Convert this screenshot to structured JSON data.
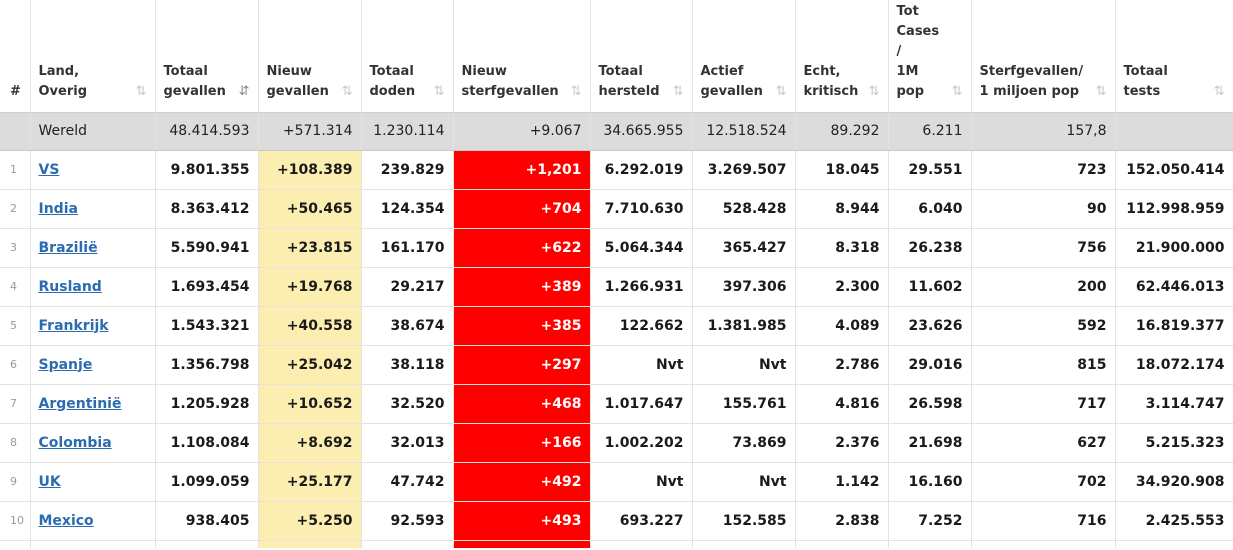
{
  "columns": [
    {
      "label": "#",
      "sort": false
    },
    {
      "label": "Land,\nOverig",
      "sort": true
    },
    {
      "label": "Totaal\ngevallen",
      "sort": true,
      "active": true
    },
    {
      "label": "Nieuw\ngevallen",
      "sort": true
    },
    {
      "label": "Totaal\ndoden",
      "sort": true
    },
    {
      "label": "Nieuw\nsterfgevallen",
      "sort": true
    },
    {
      "label": "Totaal\nhersteld",
      "sort": true
    },
    {
      "label": "Actief\ngevallen",
      "sort": true
    },
    {
      "label": "Echt,\nkritisch",
      "sort": true
    },
    {
      "label": "Tot\nCases\n/\n1M\npop",
      "sort": true
    },
    {
      "label": "Sterfgevallen/\n1 miljoen pop",
      "sort": true
    },
    {
      "label": "Totaal\ntests",
      "sort": true
    }
  ],
  "sort_icon": "⇅",
  "sort_icon_active": "⇵",
  "world": {
    "land": "Wereld",
    "total_cases": "48.414.593",
    "new_cases": "+571.314",
    "total_deaths": "1.230.114",
    "new_deaths": "+9.067",
    "total_recovered": "34.665.955",
    "active_cases": "12.518.524",
    "critical": "89.292",
    "cases_per_1m": "6.211",
    "deaths_per_1m": "157,8",
    "total_tests": ""
  },
  "rows": [
    {
      "num": "1",
      "land": "VS",
      "total_cases": "9.801.355",
      "new_cases": "+108.389",
      "total_deaths": "239.829",
      "new_deaths": "+1,201",
      "total_recovered": "6.292.019",
      "active_cases": "3.269.507",
      "critical": "18.045",
      "cases_per_1m": "29.551",
      "deaths_per_1m": "723",
      "total_tests": "152.050.414"
    },
    {
      "num": "2",
      "land": "India",
      "total_cases": "8.363.412",
      "new_cases": "+50.465",
      "total_deaths": "124.354",
      "new_deaths": "+704",
      "total_recovered": "7.710.630",
      "active_cases": "528.428",
      "critical": "8.944",
      "cases_per_1m": "6.040",
      "deaths_per_1m": "90",
      "total_tests": "112.998.959"
    },
    {
      "num": "3",
      "land": "Brazilië",
      "total_cases": "5.590.941",
      "new_cases": "+23.815",
      "total_deaths": "161.170",
      "new_deaths": "+622",
      "total_recovered": "5.064.344",
      "active_cases": "365.427",
      "critical": "8.318",
      "cases_per_1m": "26.238",
      "deaths_per_1m": "756",
      "total_tests": "21.900.000"
    },
    {
      "num": "4",
      "land": "Rusland",
      "total_cases": "1.693.454",
      "new_cases": "+19.768",
      "total_deaths": "29.217",
      "new_deaths": "+389",
      "total_recovered": "1.266.931",
      "active_cases": "397.306",
      "critical": "2.300",
      "cases_per_1m": "11.602",
      "deaths_per_1m": "200",
      "total_tests": "62.446.013"
    },
    {
      "num": "5",
      "land": "Frankrijk",
      "total_cases": "1.543.321",
      "new_cases": "+40.558",
      "total_deaths": "38.674",
      "new_deaths": "+385",
      "total_recovered": "122.662",
      "active_cases": "1.381.985",
      "critical": "4.089",
      "cases_per_1m": "23.626",
      "deaths_per_1m": "592",
      "total_tests": "16.819.377"
    },
    {
      "num": "6",
      "land": "Spanje",
      "total_cases": "1.356.798",
      "new_cases": "+25.042",
      "total_deaths": "38.118",
      "new_deaths": "+297",
      "total_recovered": "Nvt",
      "active_cases": "Nvt",
      "critical": "2.786",
      "cases_per_1m": "29.016",
      "deaths_per_1m": "815",
      "total_tests": "18.072.174"
    },
    {
      "num": "7",
      "land": "Argentinië",
      "total_cases": "1.205.928",
      "new_cases": "+10.652",
      "total_deaths": "32.520",
      "new_deaths": "+468",
      "total_recovered": "1.017.647",
      "active_cases": "155.761",
      "critical": "4.816",
      "cases_per_1m": "26.598",
      "deaths_per_1m": "717",
      "total_tests": "3.114.747"
    },
    {
      "num": "8",
      "land": "Colombia",
      "total_cases": "1.108.084",
      "new_cases": "+8.692",
      "total_deaths": "32.013",
      "new_deaths": "+166",
      "total_recovered": "1.002.202",
      "active_cases": "73.869",
      "critical": "2.376",
      "cases_per_1m": "21.698",
      "deaths_per_1m": "627",
      "total_tests": "5.215.323"
    },
    {
      "num": "9",
      "land": "UK",
      "total_cases": "1.099.059",
      "new_cases": "+25.177",
      "total_deaths": "47.742",
      "new_deaths": "+492",
      "total_recovered": "Nvt",
      "active_cases": "Nvt",
      "critical": "1.142",
      "cases_per_1m": "16.160",
      "deaths_per_1m": "702",
      "total_tests": "34.920.908"
    },
    {
      "num": "10",
      "land": "Mexico",
      "total_cases": "938.405",
      "new_cases": "+5.250",
      "total_deaths": "92.593",
      "new_deaths": "+493",
      "total_recovered": "693.227",
      "active_cases": "152.585",
      "critical": "2.838",
      "cases_per_1m": "7.252",
      "deaths_per_1m": "716",
      "total_tests": "2.425.553"
    }
  ],
  "colors": {
    "new_cases_bg": "#fbeeb0",
    "new_deaths_bg": "#ff0000",
    "world_row_bg": "#dcdcdc",
    "link": "#2b6cb0"
  }
}
